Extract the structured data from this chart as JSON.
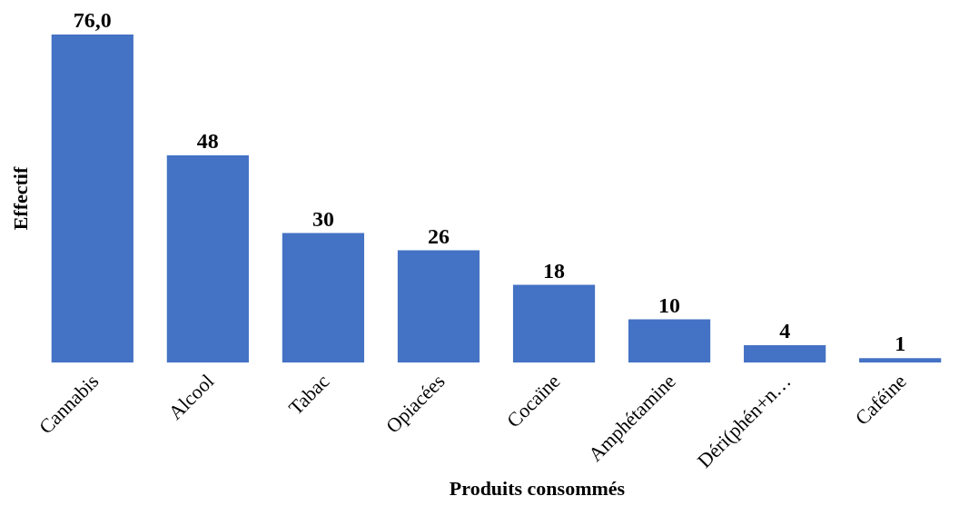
{
  "chart_data": {
    "type": "bar",
    "xlabel": "Produits consommés",
    "ylabel": "Effectif",
    "categories": [
      "Cannabis",
      "Alcool",
      "Tabac",
      "Opiacées",
      "Cocaïne",
      "Amphétamine",
      "Déri(phén+n…",
      "Caféine"
    ],
    "values": [
      76,
      48,
      30,
      26,
      18,
      10,
      4,
      1
    ],
    "value_labels": [
      "76,0",
      "48",
      "30",
      "26",
      "18",
      "10",
      "4",
      "1"
    ],
    "color": "#4472c4"
  }
}
